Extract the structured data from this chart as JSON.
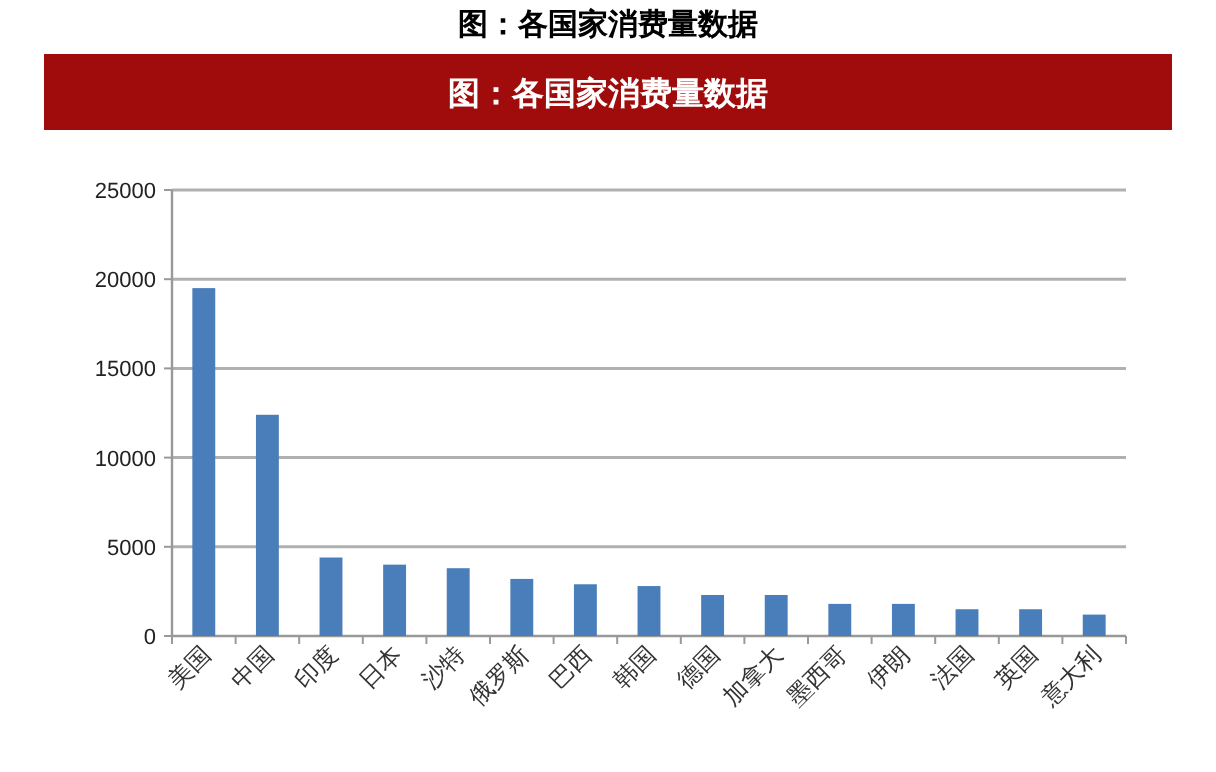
{
  "chart_data": {
    "type": "bar",
    "title": "图：各国家消费量数据",
    "subtitle": "图：各国家消费量数据",
    "categories": [
      "美国",
      "中国",
      "印度",
      "日本",
      "沙特",
      "俄罗斯",
      "巴西",
      "韩国",
      "德国",
      "加拿大",
      "墨西哥",
      "伊朗",
      "法国",
      "英国",
      "意大利"
    ],
    "values": [
      19500,
      12400,
      4400,
      4000,
      3800,
      3200,
      2900,
      2800,
      2300,
      2300,
      1800,
      1800,
      1500,
      1500,
      1200
    ],
    "color": "#4a7ebb",
    "ylim": [
      0,
      25000
    ],
    "yticks": [
      0,
      5000,
      10000,
      15000,
      20000,
      25000
    ],
    "grid": "y"
  }
}
